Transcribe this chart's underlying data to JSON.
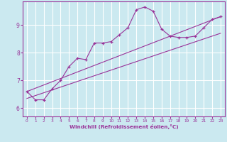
{
  "title": "",
  "xlabel": "Windchill (Refroidissement éolien,°C)",
  "ylabel": "",
  "bg_color": "#cbe9f0",
  "line_color": "#993399",
  "grid_color": "#ffffff",
  "x_ticks": [
    0,
    1,
    2,
    3,
    4,
    5,
    6,
    7,
    8,
    9,
    10,
    11,
    12,
    13,
    14,
    15,
    16,
    17,
    18,
    19,
    20,
    21,
    22,
    23
  ],
  "y_ticks": [
    6,
    7,
    8,
    9
  ],
  "ylim": [
    5.7,
    9.85
  ],
  "xlim": [
    -0.5,
    23.5
  ],
  "series1_x": [
    0,
    1,
    2,
    3,
    4,
    5,
    6,
    7,
    8,
    9,
    10,
    11,
    12,
    13,
    14,
    15,
    16,
    17,
    18,
    19,
    20,
    21,
    22,
    23
  ],
  "series1_y": [
    6.6,
    6.3,
    6.3,
    6.7,
    7.0,
    7.5,
    7.8,
    7.75,
    8.35,
    8.35,
    8.4,
    8.65,
    8.9,
    9.55,
    9.65,
    9.5,
    8.85,
    8.6,
    8.55,
    8.55,
    8.6,
    8.9,
    9.2,
    9.3
  ],
  "series2_x": [
    0,
    23
  ],
  "series2_y": [
    6.35,
    8.7
  ],
  "series3_x": [
    0,
    23
  ],
  "series3_y": [
    6.6,
    9.3
  ]
}
